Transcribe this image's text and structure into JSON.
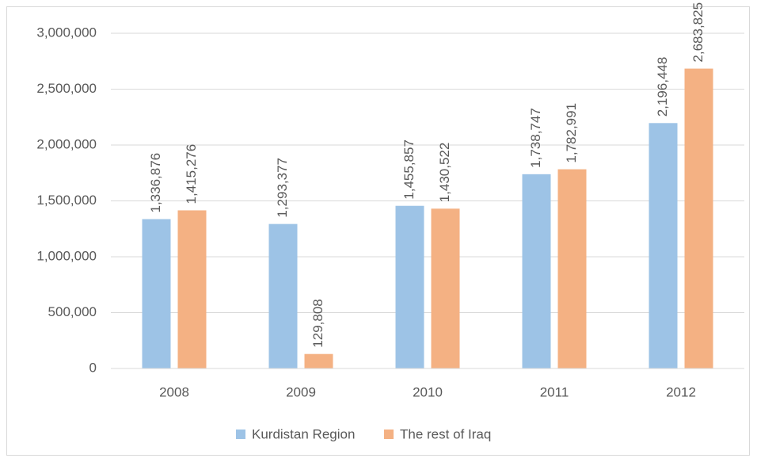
{
  "chart_data": {
    "type": "bar",
    "categories": [
      "2008",
      "2009",
      "2010",
      "2011",
      "2012"
    ],
    "series": [
      {
        "name": "Kurdistan Region",
        "color": "#9dc3e6",
        "values": [
          1336876,
          1293377,
          1455857,
          1738747,
          2196448
        ],
        "value_labels": [
          "1,336,876",
          "1,293,377",
          "1,455,857",
          "1,738,747",
          "2,196,448"
        ]
      },
      {
        "name": "The rest  of Iraq",
        "color": "#f4b183",
        "values": [
          1415276,
          129808,
          1430522,
          1782991,
          2683825
        ],
        "value_labels": [
          "1,415,276",
          "129,808",
          "1,430,522",
          "1,782,991",
          "2,683,825"
        ]
      }
    ],
    "ylim": [
      0,
      3000000
    ],
    "yticks": [
      0,
      {
        "value": 500000,
        "label": "500,000"
      },
      {
        "value": 1000000,
        "label": "1,000,000"
      },
      {
        "value": 1500000,
        "label": "1,500,000"
      },
      {
        "value": 2000000,
        "label": "2,000,000"
      },
      {
        "value": 2500000,
        "label": "2,500,000"
      },
      {
        "value": 3000000,
        "label": "3,000,000"
      }
    ],
    "grid": true,
    "legend": "bottom"
  }
}
